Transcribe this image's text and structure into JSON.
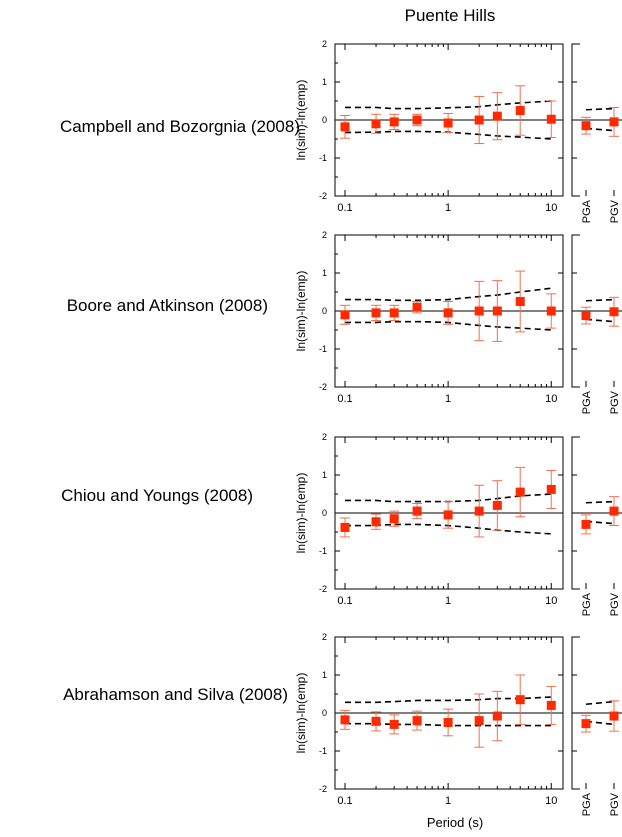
{
  "figure": {
    "title": "Puente Hills",
    "xlabel": "Period (s)",
    "ylabel": "ln(sim)-ln(emp)",
    "accent_color": "#ff2a00",
    "errorbar_color": "#f07050"
  },
  "chart_data": [
    {
      "type": "scatter",
      "title": "Campbell and Bozorgnia (2008)",
      "xscale": "log",
      "xlim": [
        0.08,
        13
      ],
      "ylim": [
        -2,
        2
      ],
      "yticks": [
        2,
        1,
        0,
        -1,
        -2
      ],
      "xticks": [
        "0.1",
        "1",
        "10"
      ],
      "x": [
        0.1,
        0.2,
        0.3,
        0.5,
        1,
        2,
        3,
        5,
        10
      ],
      "y": [
        -0.18,
        -0.1,
        -0.05,
        0.0,
        -0.08,
        0.0,
        0.1,
        0.25,
        0.02
      ],
      "err": [
        0.3,
        0.25,
        0.2,
        0.15,
        0.25,
        0.62,
        0.62,
        0.65,
        0.48
      ],
      "band_upper": [
        0.33,
        0.33,
        0.3,
        0.3,
        0.32,
        0.35,
        0.4,
        0.45,
        0.5
      ],
      "band_lower": [
        -0.33,
        -0.32,
        -0.3,
        -0.3,
        -0.32,
        -0.38,
        -0.42,
        -0.45,
        -0.5
      ],
      "categories": [
        "PGA",
        "PGV"
      ],
      "cat_y": [
        -0.15,
        -0.05
      ],
      "cat_err": [
        0.22,
        0.38
      ],
      "cat_band_upper": [
        0.27,
        0.3
      ],
      "cat_band_lower": [
        -0.22,
        -0.28
      ]
    },
    {
      "type": "scatter",
      "title": "Boore and Atkinson (2008)",
      "xscale": "log",
      "xlim": [
        0.08,
        13
      ],
      "ylim": [
        -2,
        2
      ],
      "yticks": [
        2,
        1,
        0,
        -1,
        -2
      ],
      "xticks": [
        "0.1",
        "1",
        "10"
      ],
      "x": [
        0.1,
        0.2,
        0.3,
        0.5,
        1,
        2,
        3,
        5,
        10
      ],
      "y": [
        -0.1,
        -0.05,
        -0.05,
        0.1,
        -0.05,
        0.0,
        0.0,
        0.25,
        0.0
      ],
      "err": [
        0.25,
        0.2,
        0.2,
        0.15,
        0.3,
        0.78,
        0.8,
        0.8,
        0.45
      ],
      "band_upper": [
        0.3,
        0.3,
        0.28,
        0.28,
        0.3,
        0.38,
        0.42,
        0.5,
        0.6
      ],
      "band_lower": [
        -0.3,
        -0.3,
        -0.28,
        -0.28,
        -0.3,
        -0.38,
        -0.42,
        -0.45,
        -0.5
      ],
      "categories": [
        "PGA",
        "PGV"
      ],
      "cat_y": [
        -0.12,
        -0.02
      ],
      "cat_err": [
        0.22,
        0.38
      ],
      "cat_band_upper": [
        0.27,
        0.3
      ],
      "cat_band_lower": [
        -0.22,
        -0.28
      ]
    },
    {
      "type": "scatter",
      "title": "Chiou and Youngs (2008)",
      "xscale": "log",
      "xlim": [
        0.08,
        13
      ],
      "ylim": [
        -2,
        2
      ],
      "yticks": [
        2,
        1,
        0,
        -1,
        -2
      ],
      "xticks": [
        "0.1",
        "1",
        "10"
      ],
      "x": [
        0.1,
        0.2,
        0.3,
        0.5,
        1,
        2,
        3,
        5,
        10
      ],
      "y": [
        -0.38,
        -0.23,
        -0.15,
        0.05,
        -0.05,
        0.05,
        0.2,
        0.55,
        0.62
      ],
      "err": [
        0.25,
        0.2,
        0.2,
        0.2,
        0.35,
        0.68,
        0.65,
        0.65,
        0.5
      ],
      "band_upper": [
        0.33,
        0.33,
        0.3,
        0.3,
        0.3,
        0.33,
        0.38,
        0.45,
        0.5
      ],
      "band_lower": [
        -0.33,
        -0.33,
        -0.3,
        -0.3,
        -0.33,
        -0.4,
        -0.45,
        -0.5,
        -0.55
      ],
      "categories": [
        "PGA",
        "PGV"
      ],
      "cat_y": [
        -0.3,
        0.05
      ],
      "cat_err": [
        0.25,
        0.38
      ],
      "cat_band_upper": [
        0.27,
        0.3
      ],
      "cat_band_lower": [
        -0.22,
        -0.28
      ]
    },
    {
      "type": "scatter",
      "title": "Abrahamson and Silva (2008)",
      "xscale": "log",
      "xlim": [
        0.08,
        13
      ],
      "ylim": [
        -2,
        2
      ],
      "yticks": [
        2,
        1,
        0,
        -1,
        -2
      ],
      "xticks": [
        "0.1",
        "1",
        "10"
      ],
      "x": [
        0.1,
        0.2,
        0.3,
        0.5,
        1,
        2,
        3,
        5,
        10
      ],
      "y": [
        -0.18,
        -0.22,
        -0.3,
        -0.2,
        -0.25,
        -0.2,
        -0.08,
        0.35,
        0.2
      ],
      "err": [
        0.25,
        0.25,
        0.25,
        0.25,
        0.35,
        0.7,
        0.65,
        0.65,
        0.5
      ],
      "band_upper": [
        0.28,
        0.28,
        0.3,
        0.33,
        0.33,
        0.35,
        0.38,
        0.38,
        0.42
      ],
      "band_lower": [
        -0.28,
        -0.28,
        -0.3,
        -0.3,
        -0.33,
        -0.33,
        -0.33,
        -0.33,
        -0.33
      ],
      "categories": [
        "PGA",
        "PGV"
      ],
      "cat_y": [
        -0.28,
        -0.08
      ],
      "cat_err": [
        0.22,
        0.4
      ],
      "cat_band_upper": [
        0.23,
        0.3
      ],
      "cat_band_lower": [
        -0.22,
        -0.3
      ]
    }
  ]
}
